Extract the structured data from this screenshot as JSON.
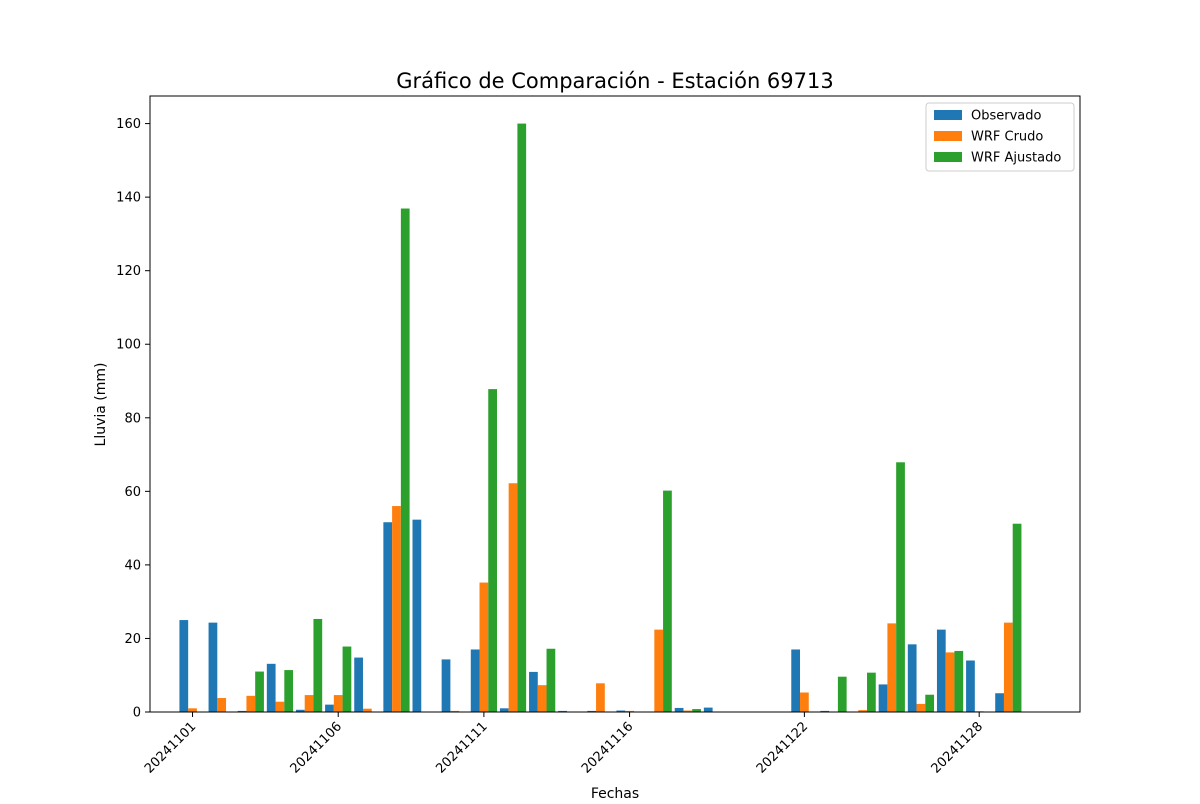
{
  "chart_data": {
    "type": "bar",
    "title": "Gráfico de Comparación - Estación 69713",
    "xlabel": "Fechas",
    "ylabel": "Lluvia (mm)",
    "ylim": [
      0,
      167.5
    ],
    "yticks": [
      0,
      20,
      40,
      60,
      80,
      100,
      120,
      140,
      160
    ],
    "xticks": [
      {
        "date": "2024-11-01",
        "label": "20241101"
      },
      {
        "date": "2024-11-06",
        "label": "20241106"
      },
      {
        "date": "2024-11-11",
        "label": "20241111"
      },
      {
        "date": "2024-11-16",
        "label": "20241116"
      },
      {
        "date": "2024-11-22",
        "label": "20241122"
      },
      {
        "date": "2024-11-28",
        "label": "20241128"
      }
    ],
    "legend_position": "top-right",
    "grid": false,
    "x": [
      "2024-11-01",
      "2024-11-02",
      "2024-11-03",
      "2024-11-04",
      "2024-11-05",
      "2024-11-06",
      "2024-11-07",
      "2024-11-08",
      "2024-11-09",
      "2024-11-10",
      "2024-11-11",
      "2024-11-12",
      "2024-11-13",
      "2024-11-14",
      "2024-11-15",
      "2024-11-16",
      "2024-11-17",
      "2024-11-18",
      "2024-11-19",
      "2024-11-20",
      "2024-11-21",
      "2024-11-22",
      "2024-11-23",
      "2024-11-24",
      "2024-11-25",
      "2024-11-26",
      "2024-11-27",
      "2024-11-28",
      "2024-11-29",
      "2024-11-30"
    ],
    "series": [
      {
        "name": "Observado",
        "color": "#1f77b4",
        "values": [
          25.0,
          24.3,
          0.3,
          13.1,
          0.6,
          2.0,
          14.8,
          51.6,
          52.3,
          14.3,
          17.0,
          1.0,
          10.9,
          0.3,
          0.3,
          0.4,
          0.0,
          1.1,
          1.2,
          0.0,
          0.0,
          17.0,
          0.3,
          0.0,
          7.5,
          18.4,
          22.4,
          14.0,
          5.1,
          0.0
        ]
      },
      {
        "name": "WRF Crudo",
        "color": "#ff7f0e",
        "values": [
          1.0,
          3.8,
          4.4,
          2.8,
          4.6,
          4.6,
          0.9,
          56.0,
          0.0,
          0.3,
          35.2,
          62.2,
          7.3,
          0.0,
          7.8,
          0.3,
          22.4,
          0.4,
          0.0,
          0.0,
          0.0,
          5.3,
          0.0,
          0.5,
          24.1,
          2.2,
          16.2,
          0.2,
          24.3,
          0.0
        ]
      },
      {
        "name": "WRF Ajustado",
        "color": "#2ca02c",
        "values": [
          0.0,
          0.0,
          11.0,
          11.4,
          25.3,
          17.8,
          0.0,
          136.9,
          0.0,
          0.0,
          87.8,
          160.0,
          17.2,
          0.0,
          0.0,
          0.0,
          60.2,
          0.8,
          0.0,
          0.0,
          0.0,
          0.0,
          9.6,
          10.7,
          67.9,
          4.7,
          16.6,
          0.0,
          51.2,
          0.0
        ]
      }
    ]
  }
}
